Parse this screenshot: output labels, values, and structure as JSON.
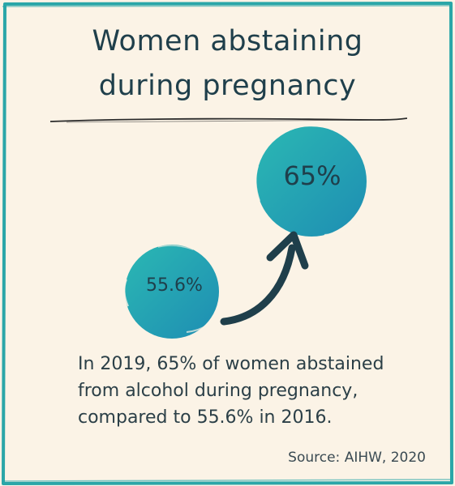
{
  "title_line1": "Women abstaining",
  "title_line2": "during pregnancy",
  "stats": {
    "earlier": {
      "value": "55.6%"
    },
    "later": {
      "value": "65%"
    }
  },
  "caption_line1": "In 2019, 65% of women abstained",
  "caption_line2": "from alcohol during pregnancy,",
  "caption_line3": "compared to 55.6% in 2016.",
  "source": "Source: AIHW, 2020",
  "colors": {
    "background": "#fbf3e6",
    "frame": "#2aa6a8",
    "bubble_light": "#2bb5b4",
    "bubble_dark": "#1f8fb3",
    "arrow": "#1f3f4b",
    "text": "#1f3f4b"
  }
}
